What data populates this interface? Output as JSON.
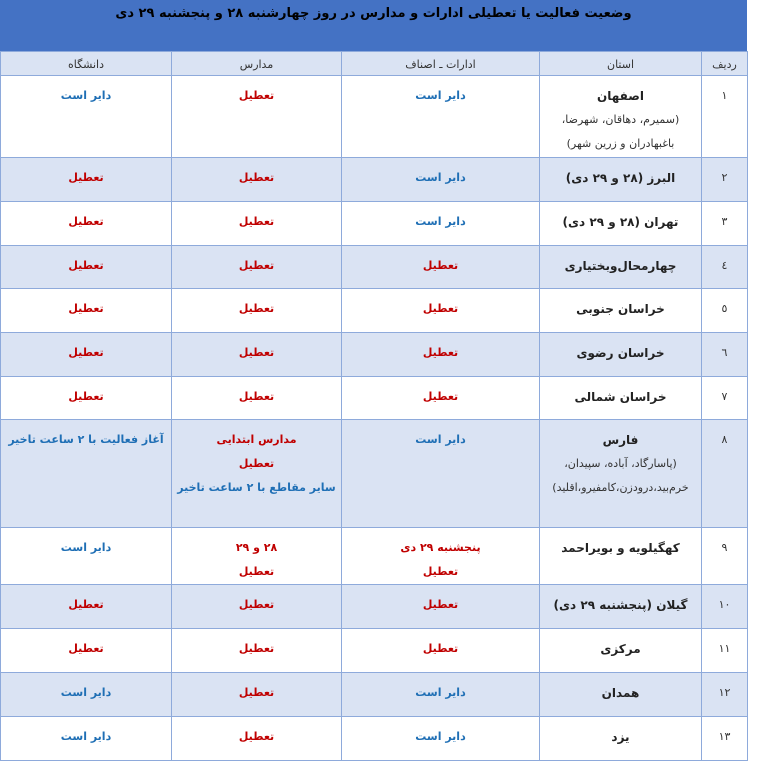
{
  "title": "وضعیت فعالیت یا تعطیلی ادارات و مدارس در روز چهارشنبه ۲۸ و پنجشنبه ۲۹ دی",
  "colors": {
    "header": "#4472c4",
    "shade": "#dae3f3",
    "open": "#1f6fb5",
    "closed": "#c00000"
  },
  "headers": {
    "row": "ردیف",
    "province": "استان",
    "offices": "ادارات ـ اصناف",
    "schools": "مدارس",
    "university": "دانشگاه"
  },
  "rows": [
    {
      "n": "۱",
      "province": "اصفهان",
      "sub": [
        "(سمیرم، دهاقان، شهرضا،",
        "باغبهادران و زرین شهر)"
      ],
      "offices": [
        [
          "دایر است",
          "blue"
        ]
      ],
      "schools": [
        [
          "تعطیل",
          "red"
        ]
      ],
      "university": [
        [
          "دایر است",
          "blue"
        ]
      ]
    },
    {
      "n": "۲",
      "province": "البرز (۲۸ و ۲۹ دی)",
      "offices": [
        [
          "دایر است",
          "blue"
        ]
      ],
      "schools": [
        [
          "تعطیل",
          "red"
        ]
      ],
      "university": [
        [
          "تعطیل",
          "red"
        ]
      ]
    },
    {
      "n": "۳",
      "province": "تهران (۲۸ و ۲۹ دی)",
      "offices": [
        [
          "دایر است",
          "blue"
        ]
      ],
      "schools": [
        [
          "تعطیل",
          "red"
        ]
      ],
      "university": [
        [
          "تعطیل",
          "red"
        ]
      ]
    },
    {
      "n": "٤",
      "province": "چهارمحال‌وبختیاری",
      "offices": [
        [
          "تعطیل",
          "red"
        ]
      ],
      "schools": [
        [
          "تعطیل",
          "red"
        ]
      ],
      "university": [
        [
          "تعطیل",
          "red"
        ]
      ]
    },
    {
      "n": "٥",
      "province": "خراسان جنوبی",
      "offices": [
        [
          "تعطیل",
          "red"
        ]
      ],
      "schools": [
        [
          "تعطیل",
          "red"
        ]
      ],
      "university": [
        [
          "تعطیل",
          "red"
        ]
      ]
    },
    {
      "n": "٦",
      "province": "خراسان رضوی",
      "offices": [
        [
          "تعطیل",
          "red"
        ]
      ],
      "schools": [
        [
          "تعطیل",
          "red"
        ]
      ],
      "university": [
        [
          "تعطیل",
          "red"
        ]
      ]
    },
    {
      "n": "۷",
      "province": "خراسان شمالی",
      "offices": [
        [
          "تعطیل",
          "red"
        ]
      ],
      "schools": [
        [
          "تعطیل",
          "red"
        ]
      ],
      "university": [
        [
          "تعطیل",
          "red"
        ]
      ]
    },
    {
      "n": "۸",
      "province": "فارس",
      "sub": [
        "(پاسارگاد، آباده، سپیدان،",
        "خرم‌بید،درودزن،کامفیرو،اقلید)"
      ],
      "offices": [
        [
          "دایر است",
          "blue"
        ]
      ],
      "schools": [
        [
          "مدارس ابتدایی",
          "red"
        ],
        [
          "تعطیل",
          "red"
        ],
        [
          "سایر مقاطع با ۲ ساعت تاخیر",
          "blue"
        ]
      ],
      "university": [
        [
          "آغاز فعالیت با ۲ ساعت تاخیر",
          "blue"
        ]
      ]
    },
    {
      "n": "۹",
      "province": "کهگیلویه و بویراحمد",
      "offices": [
        [
          "پنجشنبه ۲۹ دی",
          "red"
        ],
        [
          "تعطیل",
          "red"
        ]
      ],
      "schools": [
        [
          "۲۸ و ۲۹",
          "red"
        ],
        [
          "تعطیل",
          "red"
        ]
      ],
      "university": [
        [
          "دایر است",
          "blue"
        ]
      ]
    },
    {
      "n": "۱۰",
      "province": "گیلان (پنجشنبه ۲۹ دی)",
      "offices": [
        [
          "تعطیل",
          "red"
        ]
      ],
      "schools": [
        [
          "تعطیل",
          "red"
        ]
      ],
      "university": [
        [
          "تعطیل",
          "red"
        ]
      ]
    },
    {
      "n": "۱۱",
      "province": "مرکزی",
      "offices": [
        [
          "تعطیل",
          "red"
        ]
      ],
      "schools": [
        [
          "تعطیل",
          "red"
        ]
      ],
      "university": [
        [
          "تعطیل",
          "red"
        ]
      ]
    },
    {
      "n": "۱۲",
      "province": "همدان",
      "offices": [
        [
          "دایر است",
          "blue"
        ]
      ],
      "schools": [
        [
          "تعطیل",
          "red"
        ]
      ],
      "university": [
        [
          "دایر است",
          "blue"
        ]
      ]
    },
    {
      "n": "۱۳",
      "province": "یزد",
      "offices": [
        [
          "دایر است",
          "blue"
        ]
      ],
      "schools": [
        [
          "تعطیل",
          "red"
        ]
      ],
      "university": [
        [
          "دایر است",
          "blue"
        ]
      ]
    }
  ]
}
